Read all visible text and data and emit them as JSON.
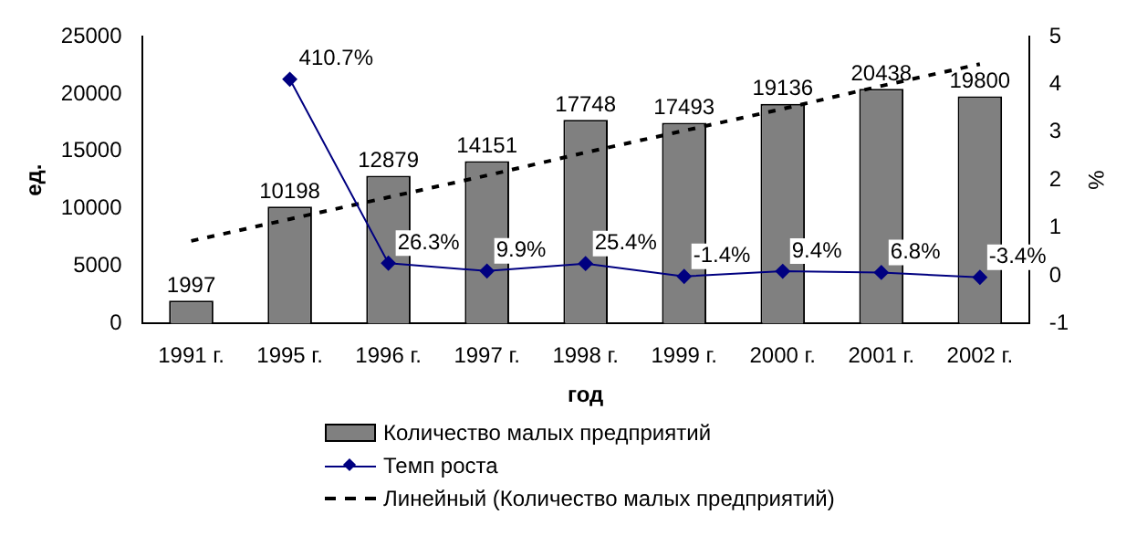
{
  "chart_data": {
    "type": "bar",
    "xlabel": "год",
    "ylabel": "ед.",
    "y2label": "%",
    "categories": [
      "1991 г.",
      "1995 г.",
      "1996 г.",
      "1997 г.",
      "1998 г.",
      "1999 г.",
      "2000 г.",
      "2001 г.",
      "2002 г."
    ],
    "series": [
      {
        "name": "Количество малых предприятий",
        "color": "#808080",
        "values": [
          1997,
          10198,
          12879,
          14151,
          17748,
          17493,
          19136,
          20438,
          19800
        ],
        "value_labels": [
          "1997",
          "10198",
          "12879",
          "14151",
          "17748",
          "17493",
          "19136",
          "20438",
          "19800"
        ]
      },
      {
        "name": "Темп роста",
        "type": "line",
        "axis": "y2",
        "color": "#000080",
        "marker": "diamond",
        "values": [
          null,
          4.107,
          0.263,
          0.099,
          0.254,
          -0.014,
          0.094,
          0.068,
          -0.034
        ],
        "value_labels": [
          null,
          "410.7%",
          "26.3%",
          "9.9%",
          "25.4%",
          "-1.4%",
          "9.4%",
          "6.8%",
          "-3.4%"
        ]
      },
      {
        "name": "Линейный (Количество малых предприятий)",
        "type": "line",
        "color": "#000000",
        "marker": "none",
        "line_style": "dashed",
        "values": [
          7200,
          9100,
          11000,
          12900,
          14900,
          16800,
          18700,
          20700,
          22600
        ]
      }
    ],
    "ylim": [
      0,
      25000
    ],
    "yticks": [
      0,
      5000,
      10000,
      15000,
      20000,
      25000
    ],
    "y2lim": [
      -1,
      5
    ],
    "y2ticks": [
      -1,
      0,
      1,
      2,
      3,
      4,
      5
    ],
    "grid": false,
    "legend": "bottom"
  }
}
